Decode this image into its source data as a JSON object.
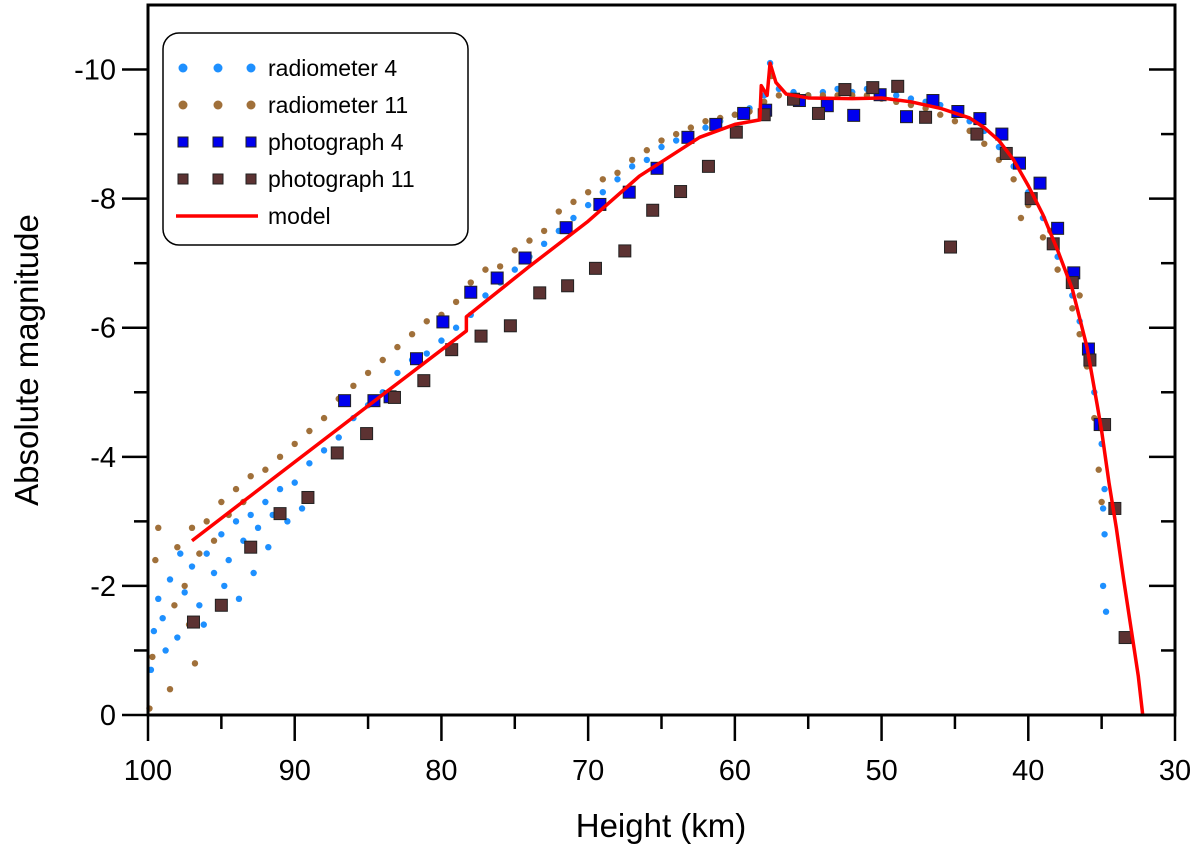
{
  "chart_data": {
    "type": "scatter",
    "xlabel": "Height (km)",
    "ylabel": "Absolute magnitude",
    "xlim": [
      100,
      30
    ],
    "ylim": [
      0,
      -11
    ],
    "x_reversed": true,
    "y_reversed": true,
    "x_ticks": [
      100,
      90,
      80,
      70,
      60,
      50,
      40,
      30
    ],
    "y_ticks": [
      -10,
      -8,
      -6,
      -4,
      -2,
      0
    ],
    "grid": false,
    "legend_position": "top-left",
    "series": [
      {
        "name": "radiometer 4",
        "kind": "dots",
        "color": "#1e90ff",
        "points": [
          [
            99.8,
            -0.7
          ],
          [
            99.6,
            -1.3
          ],
          [
            99.3,
            -1.8
          ],
          [
            99,
            -1.5
          ],
          [
            98.8,
            -1.0
          ],
          [
            98.5,
            -2.1
          ],
          [
            98,
            -1.2
          ],
          [
            97.8,
            -2.5
          ],
          [
            97.5,
            -1.9
          ],
          [
            97,
            -2.3
          ],
          [
            96.5,
            -1.7
          ],
          [
            96.2,
            -1.4
          ],
          [
            96,
            -2.5
          ],
          [
            95.5,
            -2.2
          ],
          [
            95,
            -2.8
          ],
          [
            94.8,
            -2.0
          ],
          [
            94.5,
            -2.4
          ],
          [
            94,
            -3.0
          ],
          [
            93.8,
            -1.8
          ],
          [
            93.5,
            -2.7
          ],
          [
            93,
            -3.1
          ],
          [
            92.8,
            -2.2
          ],
          [
            92.5,
            -2.9
          ],
          [
            92,
            -3.3
          ],
          [
            91.8,
            -2.6
          ],
          [
            91.5,
            -3.1
          ],
          [
            91,
            -3.5
          ],
          [
            90.5,
            -3.0
          ],
          [
            90,
            -3.6
          ],
          [
            89.5,
            -3.2
          ],
          [
            89,
            -3.9
          ],
          [
            88,
            -4.1
          ],
          [
            87,
            -4.3
          ],
          [
            86,
            -4.6
          ],
          [
            85,
            -4.8
          ],
          [
            84,
            -5.0
          ],
          [
            83,
            -5.3
          ],
          [
            82,
            -5.5
          ],
          [
            81,
            -5.6
          ],
          [
            80,
            -5.8
          ],
          [
            79,
            -6.0
          ],
          [
            78,
            -6.2
          ],
          [
            77,
            -6.5
          ],
          [
            76,
            -6.7
          ],
          [
            75,
            -6.9
          ],
          [
            74,
            -7.1
          ],
          [
            73,
            -7.3
          ],
          [
            72,
            -7.5
          ],
          [
            71,
            -7.7
          ],
          [
            70,
            -7.9
          ],
          [
            69,
            -8.1
          ],
          [
            68,
            -8.3
          ],
          [
            67,
            -8.5
          ],
          [
            66,
            -8.6
          ],
          [
            65,
            -8.8
          ],
          [
            64,
            -8.9
          ],
          [
            63,
            -9.0
          ],
          [
            62,
            -9.1
          ],
          [
            61,
            -9.2
          ],
          [
            60,
            -9.3
          ],
          [
            59,
            -9.4
          ],
          [
            58,
            -9.6
          ],
          [
            57.6,
            -10.1
          ],
          [
            57,
            -9.7
          ],
          [
            56,
            -9.65
          ],
          [
            55,
            -9.6
          ],
          [
            54,
            -9.65
          ],
          [
            53,
            -9.7
          ],
          [
            52,
            -9.65
          ],
          [
            51,
            -9.7
          ],
          [
            50,
            -9.65
          ],
          [
            49,
            -9.6
          ],
          [
            48,
            -9.55
          ],
          [
            47,
            -9.5
          ],
          [
            46,
            -9.45
          ],
          [
            45,
            -9.35
          ],
          [
            44,
            -9.2
          ],
          [
            43,
            -9.05
          ],
          [
            42,
            -8.8
          ],
          [
            41,
            -8.5
          ],
          [
            40,
            -8.1
          ],
          [
            39,
            -7.7
          ],
          [
            38,
            -7.1
          ],
          [
            37,
            -6.5
          ],
          [
            36.5,
            -6.1
          ],
          [
            36,
            -5.6
          ],
          [
            35.5,
            -5.0
          ],
          [
            35,
            -4.2
          ],
          [
            34.8,
            -3.5
          ],
          [
            34.9,
            -3.2
          ],
          [
            34.8,
            -2.8
          ],
          [
            34.9,
            -2.0
          ],
          [
            34.7,
            -1.6
          ]
        ]
      },
      {
        "name": "radiometer 11",
        "kind": "dots",
        "color": "#a0703a",
        "points": [
          [
            99.9,
            -0.1
          ],
          [
            99.7,
            -0.9
          ],
          [
            99.5,
            -2.4
          ],
          [
            99.3,
            -2.9
          ],
          [
            98.5,
            -0.4
          ],
          [
            98.2,
            -1.7
          ],
          [
            98,
            -2.6
          ],
          [
            97.5,
            -2.0
          ],
          [
            97.2,
            -1.4
          ],
          [
            97,
            -2.9
          ],
          [
            96.8,
            -0.8
          ],
          [
            96.5,
            -2.5
          ],
          [
            96,
            -3.0
          ],
          [
            95.5,
            -2.7
          ],
          [
            95,
            -3.3
          ],
          [
            94.5,
            -3.1
          ],
          [
            94,
            -3.5
          ],
          [
            93.5,
            -3.3
          ],
          [
            93,
            -3.7
          ],
          [
            92,
            -3.8
          ],
          [
            91,
            -4.0
          ],
          [
            90,
            -4.2
          ],
          [
            89,
            -4.4
          ],
          [
            88,
            -4.6
          ],
          [
            87,
            -4.9
          ],
          [
            86,
            -5.1
          ],
          [
            85,
            -5.3
          ],
          [
            84,
            -5.5
          ],
          [
            83,
            -5.7
          ],
          [
            82,
            -5.9
          ],
          [
            81,
            -6.1
          ],
          [
            80,
            -6.2
          ],
          [
            79,
            -6.4
          ],
          [
            78,
            -6.7
          ],
          [
            77,
            -6.9
          ],
          [
            76,
            -6.95
          ],
          [
            75,
            -7.2
          ],
          [
            74,
            -7.35
          ],
          [
            73,
            -7.5
          ],
          [
            72,
            -7.8
          ],
          [
            71,
            -7.95
          ],
          [
            70,
            -8.1
          ],
          [
            69,
            -8.3
          ],
          [
            68,
            -8.4
          ],
          [
            67,
            -8.6
          ],
          [
            66,
            -8.75
          ],
          [
            65,
            -8.9
          ],
          [
            64,
            -9.0
          ],
          [
            63,
            -9.1
          ],
          [
            62,
            -9.2
          ],
          [
            61,
            -9.25
          ],
          [
            60,
            -9.3
          ],
          [
            59,
            -9.35
          ],
          [
            58,
            -9.5
          ],
          [
            57.5,
            -9.9
          ],
          [
            57,
            -9.6
          ],
          [
            56,
            -9.55
          ],
          [
            55,
            -9.6
          ],
          [
            54,
            -9.6
          ],
          [
            53,
            -9.6
          ],
          [
            52,
            -9.6
          ],
          [
            51,
            -9.6
          ],
          [
            50,
            -9.55
          ],
          [
            49,
            -9.5
          ],
          [
            48,
            -9.45
          ],
          [
            47,
            -9.4
          ],
          [
            46,
            -9.3
          ],
          [
            45,
            -9.2
          ],
          [
            44,
            -9.05
          ],
          [
            43,
            -8.85
          ],
          [
            42,
            -8.6
          ],
          [
            41,
            -8.3
          ],
          [
            40.5,
            -7.7
          ],
          [
            40,
            -7.9
          ],
          [
            39,
            -7.4
          ],
          [
            38.5,
            -7.5
          ],
          [
            38,
            -6.9
          ],
          [
            37,
            -6.3
          ],
          [
            36.5,
            -6.5
          ],
          [
            36.5,
            -5.9
          ],
          [
            36,
            -5.4
          ],
          [
            35.5,
            -4.6
          ],
          [
            35.2,
            -3.8
          ],
          [
            35,
            -3.3
          ]
        ]
      },
      {
        "name": "photograph 4",
        "kind": "squares",
        "color": "#0000ee",
        "points": [
          [
            86.6,
            -4.87
          ],
          [
            84.6,
            -4.87
          ],
          [
            83.5,
            -4.93
          ],
          [
            81.7,
            -5.52
          ],
          [
            79.9,
            -6.09
          ],
          [
            78.0,
            -6.55
          ],
          [
            76.2,
            -6.77
          ],
          [
            74.3,
            -7.08
          ],
          [
            71.5,
            -7.55
          ],
          [
            69.2,
            -7.91
          ],
          [
            67.2,
            -8.1
          ],
          [
            65.3,
            -8.47
          ],
          [
            63.2,
            -8.95
          ],
          [
            61.3,
            -9.15
          ],
          [
            59.4,
            -9.32
          ],
          [
            57.9,
            -9.37
          ],
          [
            55.6,
            -9.52
          ],
          [
            53.7,
            -9.44
          ],
          [
            51.9,
            -9.29
          ],
          [
            50.1,
            -9.61
          ],
          [
            48.3,
            -9.27
          ],
          [
            46.5,
            -9.52
          ],
          [
            44.8,
            -9.35
          ],
          [
            43.3,
            -9.24
          ],
          [
            41.8,
            -9.0
          ],
          [
            40.6,
            -8.55
          ],
          [
            39.2,
            -8.24
          ],
          [
            38.0,
            -7.54
          ],
          [
            36.9,
            -6.85
          ],
          [
            35.9,
            -5.67
          ],
          [
            35.1,
            -4.5
          ]
        ]
      },
      {
        "name": "photograph 11",
        "kind": "squares",
        "color": "#5c3232",
        "points": [
          [
            96.9,
            -1.44
          ],
          [
            95.0,
            -1.7
          ],
          [
            93.0,
            -2.6
          ],
          [
            91.0,
            -3.12
          ],
          [
            89.1,
            -3.37
          ],
          [
            87.1,
            -4.06
          ],
          [
            85.1,
            -4.36
          ],
          [
            83.2,
            -4.92
          ],
          [
            81.2,
            -5.18
          ],
          [
            79.3,
            -5.66
          ],
          [
            77.3,
            -5.87
          ],
          [
            75.3,
            -6.03
          ],
          [
            73.3,
            -6.54
          ],
          [
            71.4,
            -6.65
          ],
          [
            69.5,
            -6.92
          ],
          [
            67.5,
            -7.19
          ],
          [
            65.6,
            -7.82
          ],
          [
            63.7,
            -8.11
          ],
          [
            61.8,
            -8.5
          ],
          [
            59.9,
            -9.03
          ],
          [
            58.0,
            -9.3
          ],
          [
            56.0,
            -9.54
          ],
          [
            54.3,
            -9.32
          ],
          [
            52.5,
            -9.69
          ],
          [
            50.6,
            -9.72
          ],
          [
            48.9,
            -9.74
          ],
          [
            47.0,
            -9.26
          ],
          [
            45.3,
            -7.25
          ],
          [
            43.5,
            -9.0
          ],
          [
            41.5,
            -8.7
          ],
          [
            39.8,
            -8.0
          ],
          [
            38.3,
            -7.3
          ],
          [
            37.0,
            -6.7
          ],
          [
            35.8,
            -5.5
          ],
          [
            34.8,
            -4.5
          ],
          [
            34.1,
            -3.2
          ],
          [
            33.4,
            -1.2
          ]
        ]
      },
      {
        "name": "model",
        "kind": "line",
        "color": "#ff0000",
        "points": [
          [
            97,
            -2.7
          ],
          [
            90,
            -3.92
          ],
          [
            85,
            -4.79
          ],
          [
            78.3,
            -5.95
          ],
          [
            78.3,
            -6.17
          ],
          [
            74,
            -6.95
          ],
          [
            70,
            -7.65
          ],
          [
            66.5,
            -8.35
          ],
          [
            62.4,
            -8.95
          ],
          [
            60,
            -9.15
          ],
          [
            58.3,
            -9.22
          ],
          [
            58.2,
            -9.75
          ],
          [
            57.8,
            -9.6
          ],
          [
            57.6,
            -10.1
          ],
          [
            57.2,
            -9.8
          ],
          [
            56.5,
            -9.62
          ],
          [
            55,
            -9.56
          ],
          [
            52,
            -9.55
          ],
          [
            50,
            -9.56
          ],
          [
            48,
            -9.5
          ],
          [
            46,
            -9.4
          ],
          [
            44,
            -9.25
          ],
          [
            43,
            -9.1
          ],
          [
            42,
            -8.9
          ],
          [
            41,
            -8.6
          ],
          [
            40,
            -8.2
          ],
          [
            39,
            -7.75
          ],
          [
            38,
            -7.2
          ],
          [
            37,
            -6.6
          ],
          [
            36,
            -5.7
          ],
          [
            35.3,
            -4.8
          ],
          [
            35,
            -4.4
          ],
          [
            34.5,
            -3.6
          ],
          [
            34,
            -2.9
          ],
          [
            33.5,
            -2.1
          ],
          [
            33,
            -1.35
          ],
          [
            32.5,
            -0.6
          ],
          [
            32.2,
            0
          ]
        ]
      }
    ]
  }
}
